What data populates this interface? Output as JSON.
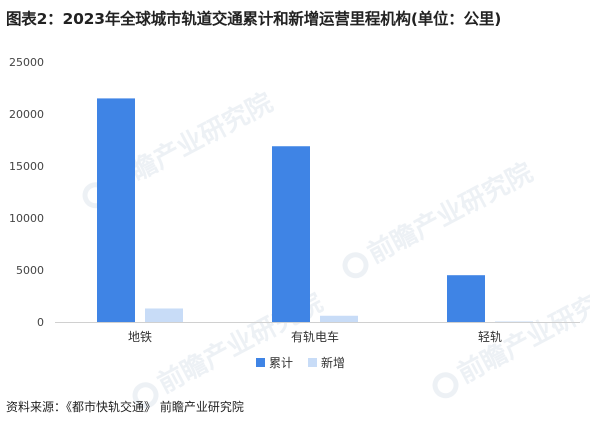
{
  "title": "图表2：2023年全球城市轨道交通累计和新增运营里程机构(单位：公里)",
  "source": "资料来源：《都市快轨交通》 前瞻产业研究院",
  "watermark": "前瞻产业研究院",
  "chart_data": {
    "type": "bar",
    "categories": [
      "地铁",
      "有轨电车",
      "轻轨"
    ],
    "series": [
      {
        "name": "累计",
        "values": [
          21500,
          16900,
          4500
        ],
        "color": "#3f84e5"
      },
      {
        "name": "新增",
        "values": [
          1300,
          600,
          50
        ],
        "color": "#c8dcf7"
      }
    ],
    "ylim": [
      0,
      25000
    ],
    "yticks": [
      0,
      5000,
      10000,
      15000,
      20000,
      25000
    ],
    "legend": "bottom",
    "grid": false
  }
}
